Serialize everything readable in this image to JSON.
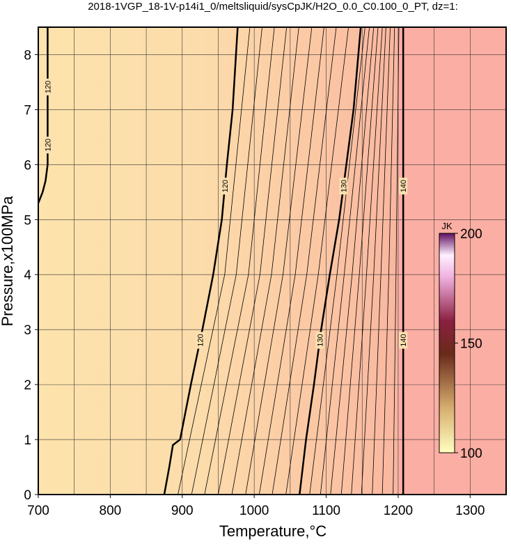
{
  "chart_data": {
    "type": "contour",
    "title": "2018-1VGP_18-1V-p14i1_0/meltsliquid/sysCpJK/H2O_0.0_C0.100_0_PT, dz=1:",
    "xlabel": "Temperature,°C",
    "ylabel": "Pressure,x100MPa",
    "xlim": [
      700,
      1350
    ],
    "ylim": [
      0,
      8.5
    ],
    "xticks": [
      700,
      800,
      900,
      1000,
      1100,
      1200,
      1300
    ],
    "yticks": [
      0,
      1,
      2,
      3,
      4,
      5,
      6,
      7,
      8
    ],
    "xgrid": [
      750,
      800,
      850,
      900,
      950,
      1000,
      1050,
      1100,
      1150,
      1200,
      1250,
      1300
    ],
    "grid": true,
    "contours": [
      {
        "level": 120,
        "x": [
          713,
          713,
          710,
          706,
          700
        ],
        "y": [
          8.5,
          6.0,
          5.7,
          5.5,
          5.3
        ]
      },
      {
        "level": 120,
        "x": [
          875,
          882,
          887,
          897,
          912,
          928,
          943,
          955,
          962,
          970,
          977
        ],
        "y": [
          0,
          0.5,
          0.9,
          1.0,
          2.0,
          3.0,
          4.0,
          5.0,
          6.0,
          7.0,
          8.5
        ]
      },
      {
        "level": 121,
        "x": [
          894,
          959,
          994
        ],
        "y": [
          0,
          4,
          8.5
        ]
      },
      {
        "level": 122,
        "x": [
          913,
          975,
          1011
        ],
        "y": [
          0,
          4,
          8.5
        ]
      },
      {
        "level": 123,
        "x": [
          931,
          992,
          1028
        ],
        "y": [
          0,
          4,
          8.5
        ]
      },
      {
        "level": 124,
        "x": [
          950,
          1008,
          1045
        ],
        "y": [
          0,
          4,
          8.5
        ]
      },
      {
        "level": 125,
        "x": [
          969,
          1024,
          1062
        ],
        "y": [
          0,
          4,
          8.5
        ]
      },
      {
        "level": 126,
        "x": [
          988,
          1040,
          1080
        ],
        "y": [
          0,
          4,
          8.5
        ]
      },
      {
        "level": 127,
        "x": [
          1007,
          1057,
          1097
        ],
        "y": [
          0,
          4,
          8.5
        ]
      },
      {
        "level": 128,
        "x": [
          1025,
          1073,
          1114
        ],
        "y": [
          0,
          4,
          8.5
        ]
      },
      {
        "level": 129,
        "x": [
          1044,
          1089,
          1131
        ],
        "y": [
          0,
          4,
          8.5
        ]
      },
      {
        "level": 130,
        "x": [
          1063,
          1072,
          1083,
          1093,
          1105,
          1118,
          1128,
          1138,
          1148
        ],
        "y": [
          0,
          1.0,
          2.0,
          3.0,
          4.0,
          5.0,
          6.0,
          7.0,
          8.5
        ]
      },
      {
        "level": 131,
        "x": [
          1077,
          1115,
          1154
        ],
        "y": [
          0,
          4,
          8.5
        ]
      },
      {
        "level": 132,
        "x": [
          1092,
          1125,
          1160
        ],
        "y": [
          0,
          4,
          8.5
        ]
      },
      {
        "level": 133,
        "x": [
          1106,
          1136,
          1166
        ],
        "y": [
          0,
          4,
          8.5
        ]
      },
      {
        "level": 134,
        "x": [
          1121,
          1146,
          1172
        ],
        "y": [
          0,
          4,
          8.5
        ]
      },
      {
        "level": 135,
        "x": [
          1135,
          1156,
          1178
        ],
        "y": [
          0,
          4,
          8.5
        ]
      },
      {
        "level": 136,
        "x": [
          1149,
          1166,
          1183
        ],
        "y": [
          0,
          4,
          8.5
        ]
      },
      {
        "level": 137,
        "x": [
          1164,
          1176,
          1189
        ],
        "y": [
          0,
          4,
          8.5
        ]
      },
      {
        "level": 138,
        "x": [
          1178,
          1187,
          1195
        ],
        "y": [
          0,
          4,
          8.5
        ]
      },
      {
        "level": 139,
        "x": [
          1193,
          1197,
          1201
        ],
        "y": [
          0,
          4,
          8.5
        ]
      },
      {
        "level": 140,
        "x": [
          1207,
          1207
        ],
        "y": [
          0,
          8.5
        ]
      }
    ],
    "colorbar": {
      "label": "JK",
      "lim": [
        100,
        200
      ],
      "ticks": [
        100,
        150,
        200
      ]
    }
  }
}
